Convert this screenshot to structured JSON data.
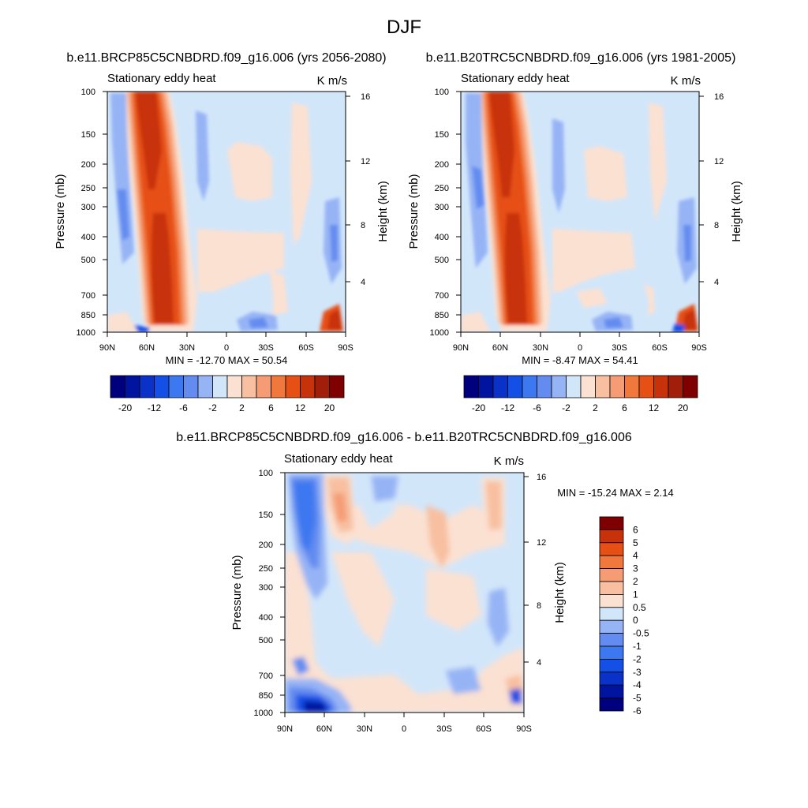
{
  "title": "DJF",
  "panels": [
    {
      "case_title": "b.e11.BRCP85C5CNBDRD.f09_g16.006 (yrs 2056-2080)",
      "left_string": "Stationary eddy heat",
      "right_string": "K m/s",
      "y_label": "Pressure (mb)",
      "y2_label": "Height (km)",
      "stats": "MIN = -12.70  MAX =  50.54"
    },
    {
      "case_title": "b.e11.B20TRC5CNBDRD.f09_g16.006 (yrs 1981-2005)",
      "left_string": "Stationary eddy heat",
      "right_string": "K m/s",
      "y_label": "Pressure (mb)",
      "y2_label": "Height (km)",
      "stats": "MIN =  -8.47  MAX =  54.41"
    },
    {
      "case_title": "b.e11.BRCP85C5CNBDRD.f09_g16.006 - b.e11.B20TRC5CNBDRD.f09_g16.006",
      "left_string": "Stationary eddy heat",
      "right_string": "K m/s",
      "y_label": "Pressure (mb)",
      "y2_label": "Height (km)",
      "stats": "MIN = -15.24  MAX =   2.14"
    }
  ],
  "chart_data": [
    {
      "type": "heatmap",
      "title": "b.e11.BRCP85C5CNBDRD.f09_g16.006 (yrs 2056-2080)",
      "x_ticks": [
        "90N",
        "60N",
        "30N",
        "0",
        "30S",
        "60S",
        "90S"
      ],
      "y_ticks": [
        "100",
        "150",
        "200",
        "250",
        "300",
        "400",
        "500",
        "700",
        "850",
        "1000"
      ],
      "y2_ticks": [
        "16",
        "12",
        "8",
        "4"
      ],
      "xlim": [
        90,
        -90
      ],
      "ylim": [
        1000,
        100
      ],
      "colorbar_labels": [
        "-20",
        "-12",
        "-6",
        "-2",
        "2",
        "6",
        "12",
        "20"
      ],
      "min": -12.7,
      "max": 50.54
    },
    {
      "type": "heatmap",
      "title": "b.e11.B20TRC5CNBDRD.f09_g16.006 (yrs 1981-2005)",
      "x_ticks": [
        "90N",
        "60N",
        "30N",
        "0",
        "30S",
        "60S",
        "90S"
      ],
      "y_ticks": [
        "100",
        "150",
        "200",
        "250",
        "300",
        "400",
        "500",
        "700",
        "850",
        "1000"
      ],
      "y2_ticks": [
        "16",
        "12",
        "8",
        "4"
      ],
      "xlim": [
        90,
        -90
      ],
      "ylim": [
        1000,
        100
      ],
      "colorbar_labels": [
        "-20",
        "-12",
        "-6",
        "-2",
        "2",
        "6",
        "12",
        "20"
      ],
      "min": -8.47,
      "max": 54.41
    },
    {
      "type": "heatmap",
      "title": "b.e11.BRCP85C5CNBDRD.f09_g16.006 - b.e11.B20TRC5CNBDRD.f09_g16.006",
      "x_ticks": [
        "90N",
        "60N",
        "30N",
        "0",
        "30S",
        "60S",
        "90S"
      ],
      "y_ticks": [
        "100",
        "150",
        "200",
        "250",
        "300",
        "400",
        "500",
        "700",
        "850",
        "1000"
      ],
      "y2_ticks": [
        "16",
        "12",
        "8",
        "4"
      ],
      "xlim": [
        90,
        -90
      ],
      "ylim": [
        1000,
        100
      ],
      "colorbar_labels": [
        "6",
        "5",
        "4",
        "3",
        "2",
        "1",
        "0.5",
        "0",
        "-0.5",
        "-1",
        "-2",
        "-3",
        "-4",
        "-5",
        "-6"
      ],
      "min": -15.24,
      "max": 2.14
    }
  ],
  "colors": {
    "bg_light_blue": "#d2e6fa",
    "light_orange": "#fbe1d2",
    "scale_16": [
      "#00007f",
      "#0014a0",
      "#0a32c8",
      "#1450e6",
      "#3c78f0",
      "#648cf0",
      "#96b4f5",
      "#d2e6fa",
      "#fbe1d2",
      "#f8c0a0",
      "#f59c75",
      "#f0783c",
      "#e65014",
      "#c8320a",
      "#a01e0a",
      "#7f0000"
    ],
    "scale_14": [
      "#00007f",
      "#0014a0",
      "#0a32c8",
      "#1450e6",
      "#3c78f0",
      "#648cf0",
      "#96b4f5",
      "#d2e6fa",
      "#fbe1d2",
      "#f8c0a0",
      "#f59c75",
      "#f0783c",
      "#e65014",
      "#c8320a",
      "#7f0000"
    ]
  }
}
